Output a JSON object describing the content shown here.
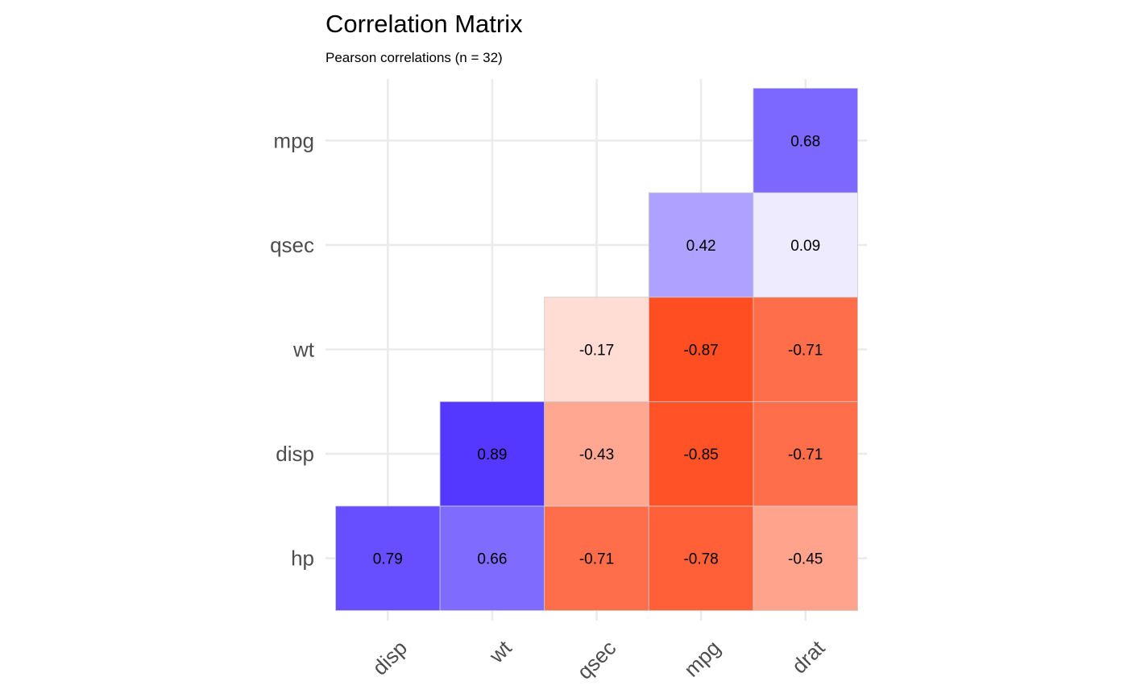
{
  "chart_data": {
    "type": "heatmap",
    "title": "Correlation Matrix",
    "subtitle": "Pearson correlations (n = 32)",
    "x_categories": [
      "disp",
      "wt",
      "qsec",
      "mpg",
      "drat"
    ],
    "y_categories": [
      "hp",
      "disp",
      "wt",
      "qsec",
      "mpg"
    ],
    "cells": [
      {
        "x": "disp",
        "y": "hp",
        "value": 0.79,
        "label": "0.79"
      },
      {
        "x": "wt",
        "y": "hp",
        "value": 0.66,
        "label": "0.66"
      },
      {
        "x": "qsec",
        "y": "hp",
        "value": -0.71,
        "label": "-0.71"
      },
      {
        "x": "mpg",
        "y": "hp",
        "value": -0.78,
        "label": "-0.78"
      },
      {
        "x": "drat",
        "y": "hp",
        "value": -0.45,
        "label": "-0.45"
      },
      {
        "x": "wt",
        "y": "disp",
        "value": 0.89,
        "label": "0.89"
      },
      {
        "x": "qsec",
        "y": "disp",
        "value": -0.43,
        "label": "-0.43"
      },
      {
        "x": "mpg",
        "y": "disp",
        "value": -0.85,
        "label": "-0.85"
      },
      {
        "x": "drat",
        "y": "disp",
        "value": -0.71,
        "label": "-0.71"
      },
      {
        "x": "qsec",
        "y": "wt",
        "value": -0.17,
        "label": "-0.17"
      },
      {
        "x": "mpg",
        "y": "wt",
        "value": -0.87,
        "label": "-0.87"
      },
      {
        "x": "drat",
        "y": "wt",
        "value": -0.71,
        "label": "-0.71"
      },
      {
        "x": "mpg",
        "y": "qsec",
        "value": 0.42,
        "label": "0.42"
      },
      {
        "x": "drat",
        "y": "qsec",
        "value": 0.09,
        "label": "0.09"
      },
      {
        "x": "drat",
        "y": "mpg",
        "value": 0.68,
        "label": "0.68"
      }
    ],
    "value_range": [
      -1,
      1
    ],
    "colors": {
      "negative": "#ff3300",
      "mid": "#ffffff",
      "positive": "#3f1fff"
    },
    "grid": true,
    "legend": "none"
  }
}
